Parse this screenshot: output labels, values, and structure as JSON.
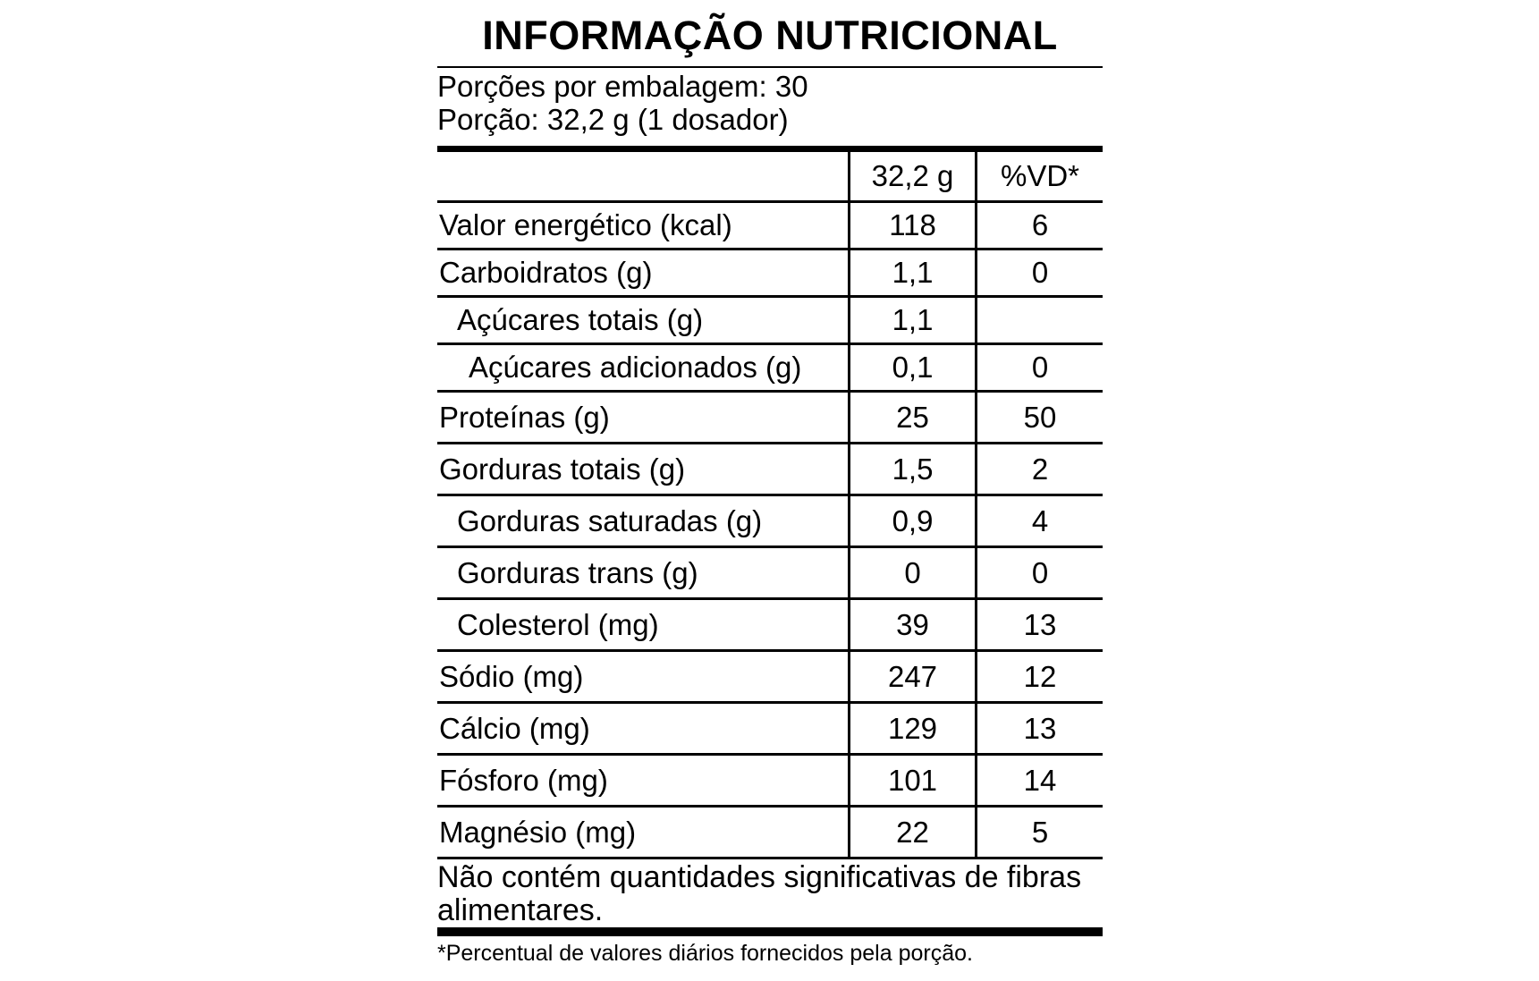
{
  "label": {
    "title": "INFORMAÇÃO NUTRICIONAL",
    "servings_per_package": "Porções por embalagem: 30",
    "serving_size": "Porção: 32,2 g (1 dosador)",
    "columns": {
      "amount": "32,2 g",
      "daily_value": "%VD*"
    },
    "rows": [
      {
        "name": "Valor energético (kcal)",
        "amount": "118",
        "dv": "6",
        "indent": 0
      },
      {
        "name": "Carboidratos (g)",
        "amount": "1,1",
        "dv": "0",
        "indent": 0
      },
      {
        "name": "Açúcares totais (g)",
        "amount": "1,1",
        "dv": "",
        "indent": 1
      },
      {
        "name": "Açúcares adicionados (g)",
        "amount": "0,1",
        "dv": "0",
        "indent": 2
      },
      {
        "name": "Proteínas (g)",
        "amount": "25",
        "dv": "50",
        "indent": 0
      },
      {
        "name": "Gorduras totais (g)",
        "amount": "1,5",
        "dv": "2",
        "indent": 0
      },
      {
        "name": "Gorduras saturadas (g)",
        "amount": "0,9",
        "dv": "4",
        "indent": 1
      },
      {
        "name": "Gorduras trans (g)",
        "amount": "0",
        "dv": "0",
        "indent": 1
      },
      {
        "name": "Colesterol (mg)",
        "amount": "39",
        "dv": "13",
        "indent": 1
      },
      {
        "name": "Sódio (mg)",
        "amount": "247",
        "dv": "12",
        "indent": 0
      },
      {
        "name": "Cálcio (mg)",
        "amount": "129",
        "dv": "13",
        "indent": 0
      },
      {
        "name": "Fósforo (mg)",
        "amount": "101",
        "dv": "14",
        "indent": 0
      },
      {
        "name": "Magnésio (mg)",
        "amount": "22",
        "dv": "5",
        "indent": 0
      }
    ],
    "fiber_note": "Não contém quantidades significativas de fibras alimentares.",
    "footnote": "*Percentual de valores diários fornecidos pela porção.",
    "colors": {
      "text": "#000000",
      "background": "#ffffff",
      "rule": "#000000"
    }
  }
}
